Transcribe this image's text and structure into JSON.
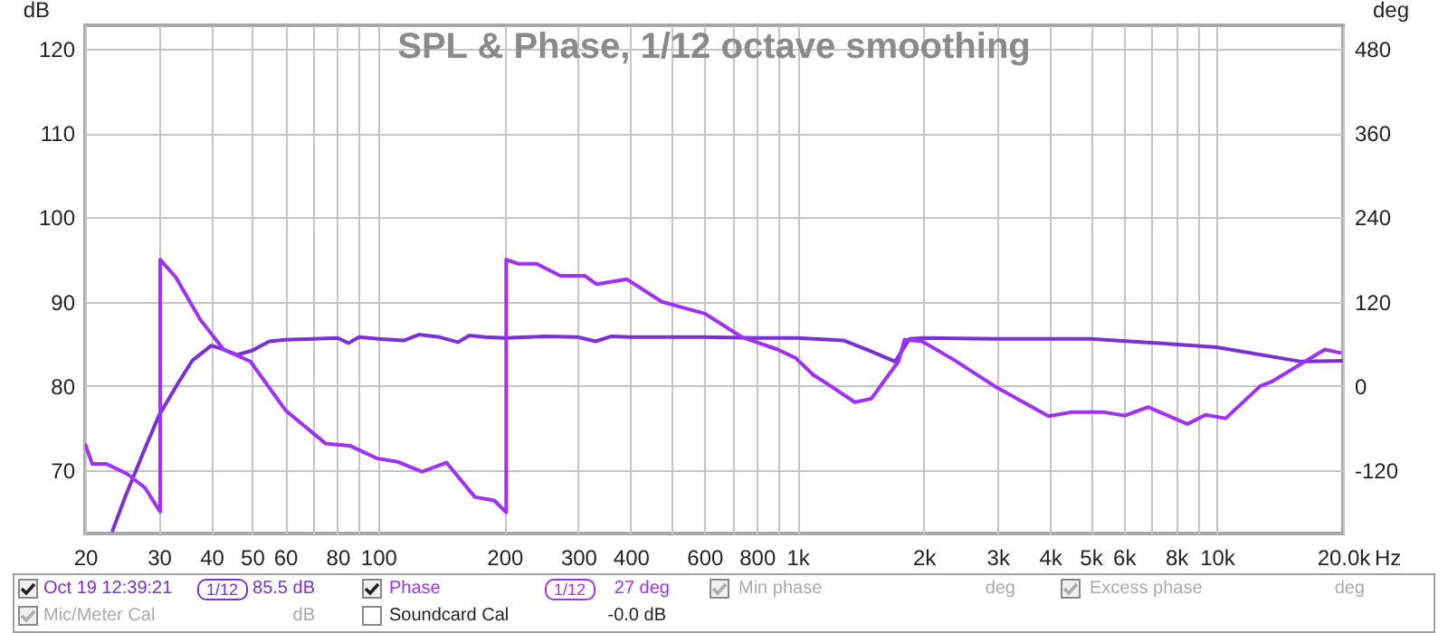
{
  "chart_data": {
    "type": "line",
    "title": "SPL & Phase, 1/12 octave smoothing",
    "ylabel": "dB",
    "y2label": "deg",
    "xlim": [
      20,
      20000
    ],
    "ylim": [
      62.5,
      122.8
    ],
    "y2lim": [
      -210,
      513.6
    ],
    "xticks": [
      20,
      30,
      40,
      50,
      60,
      {
        "value": 70,
        "label": null
      },
      80,
      {
        "value": 90,
        "label": null
      },
      100,
      200,
      300,
      400,
      {
        "value": 500,
        "label": null
      },
      600,
      {
        "value": 700,
        "label": null
      },
      800,
      {
        "value": 900,
        "label": null
      },
      {
        "value": 1000,
        "label": "1k"
      },
      {
        "value": 2000,
        "label": "2k"
      },
      {
        "value": 3000,
        "label": "3k"
      },
      {
        "value": 4000,
        "label": "4k"
      },
      {
        "value": 5000,
        "label": "5k"
      },
      {
        "value": 6000,
        "label": "6k"
      },
      {
        "value": 7000,
        "label": null
      },
      {
        "value": 8000,
        "label": "8k"
      },
      {
        "value": 9000,
        "label": null
      },
      {
        "value": 10000,
        "label": "10k"
      },
      {
        "value": 20000,
        "label": "20.0k"
      }
    ],
    "xlabel": "Hz",
    "yticks": [
      70,
      80,
      90,
      100,
      110,
      120
    ],
    "y2ticks": [
      -120,
      0,
      120,
      240,
      360,
      480
    ],
    "log": "x",
    "grid": true,
    "legend": "bottom",
    "series": [
      {
        "name": "Oct 19 12:39:21",
        "color": "#7a2fd8",
        "x": [
          23.2,
          25,
          28,
          30,
          33,
          36,
          40,
          43,
          46,
          50,
          55,
          60,
          70,
          80,
          85,
          90,
          100,
          115,
          125,
          140,
          155,
          165,
          180,
          200,
          250,
          300,
          330,
          360,
          400,
          600,
          800,
          1000,
          1290,
          1470,
          1710,
          1850,
          2000,
          3000,
          5000,
          6700,
          10000,
          15900,
          20000
        ],
        "values": [
          62.7,
          67,
          73,
          76.5,
          80,
          83,
          84.8,
          84.3,
          83.7,
          84.2,
          85.3,
          85.5,
          85.6,
          85.7,
          85.1,
          85.8,
          85.6,
          85.4,
          86.1,
          85.8,
          85.2,
          86,
          85.8,
          85.7,
          85.9,
          85.8,
          85.3,
          85.9,
          85.8,
          85.8,
          85.7,
          85.7,
          85.4,
          84.3,
          82.9,
          85.6,
          85.7,
          85.6,
          85.6,
          85.2,
          84.6,
          82.9,
          83
        ]
      },
      {
        "name": "Phase",
        "color": "#a030f5",
        "axis": "y2",
        "x": [
          20,
          20.8,
          22.5,
          25.2,
          27.8,
          30.2,
          30.2,
          32.9,
          37.6,
          42.8,
          49.6,
          60.2,
          75,
          85.6,
          99.3,
          111.5,
          127.3,
          145.5,
          170,
          189.3,
          202,
          202,
          216,
          238.7,
          272,
          311,
          332,
          392,
          475,
          602,
          735,
          897,
          990,
          1090,
          1200,
          1370,
          1500,
          1740,
          1800,
          1980,
          2350,
          2950,
          3970,
          4520,
          5350,
          6030,
          6860,
          8510,
          9400,
          10500,
          12700,
          13500,
          18100,
          19800
        ],
        "values": [
          -82,
          -111,
          -111,
          -125,
          -145,
          -179,
          180,
          155,
          95,
          52,
          35,
          -35,
          -82,
          -85,
          -103,
          -108,
          -122,
          -109,
          -158,
          -163,
          -180,
          180,
          174,
          174,
          157,
          157,
          145,
          152,
          120,
          103,
          70,
          52,
          40,
          16,
          0,
          -23,
          -18,
          35,
          66,
          64,
          38,
          0,
          -43,
          -37,
          -37,
          -42,
          -30,
          -54,
          -41,
          -46,
          0,
          6,
          52,
          47
        ]
      }
    ],
    "annotations": [
      "1/12",
      "85.5 dB",
      "1/12",
      "27 deg",
      "Min phase",
      "deg",
      "Excess phase",
      "deg",
      "Mic/Meter Cal",
      "dB",
      "Soundcard Cal",
      "-0.0 dB"
    ]
  }
}
